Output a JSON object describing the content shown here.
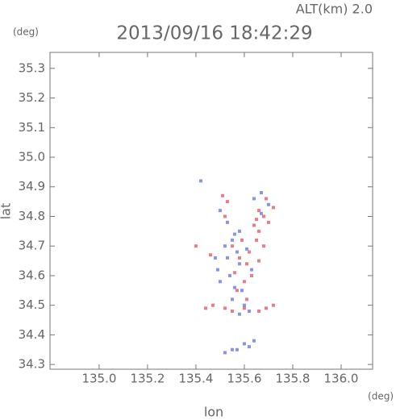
{
  "chart_data": {
    "type": "scatter",
    "title": "2013/09/16 18:42:29",
    "subtitle": "ALT(km) 2.0",
    "y_unit": "(deg)",
    "x_unit": "(deg)",
    "xlabel": "lon",
    "ylabel": "lat",
    "xlim": [
      134.797,
      136.13
    ],
    "ylim": [
      34.284,
      35.354
    ],
    "xticks": [
      {
        "value": 135.0,
        "label": "135.0"
      },
      135.2,
      135.4,
      135.6,
      135.8,
      {
        "value": 136.0,
        "label": "136.0"
      }
    ],
    "yticks": [
      34.3,
      34.4,
      34.5,
      34.6,
      34.7,
      34.8,
      34.9,
      {
        "value": 35.0,
        "label": "35.0"
      },
      35.1,
      35.2,
      35.3
    ],
    "series": [
      {
        "color": "#e05060",
        "x": [
          135.51,
          135.53,
          135.52,
          135.66,
          135.68,
          135.7,
          135.65,
          135.72,
          135.69,
          135.64,
          135.66,
          135.55,
          135.58,
          135.62,
          135.65,
          135.68,
          135.61,
          135.66,
          135.6,
          135.63,
          135.57,
          135.44,
          135.47,
          135.52,
          135.55,
          135.6,
          135.66,
          135.69,
          135.72,
          135.4,
          135.46,
          135.61,
          135.56,
          135.59
        ],
        "y": [
          34.87,
          34.85,
          34.8,
          34.82,
          34.8,
          34.78,
          34.79,
          34.83,
          34.86,
          34.77,
          34.75,
          34.7,
          34.66,
          34.68,
          34.72,
          34.7,
          34.64,
          34.65,
          34.58,
          34.6,
          34.55,
          34.49,
          34.5,
          34.49,
          34.48,
          34.49,
          34.48,
          34.49,
          34.5,
          34.7,
          34.67,
          34.52,
          34.61,
          34.72
        ]
      },
      {
        "color": "#6070e0",
        "x": [
          135.42,
          135.5,
          135.53,
          135.48,
          135.49,
          135.52,
          135.55,
          135.57,
          135.5,
          135.54,
          135.58,
          135.53,
          135.56,
          135.59,
          135.55,
          135.6,
          135.62,
          135.58,
          135.61,
          135.56,
          135.64,
          135.67,
          135.52,
          135.57,
          135.62,
          135.55,
          135.6,
          135.64,
          135.67,
          135.7,
          135.63,
          135.58
        ],
        "y": [
          34.92,
          34.82,
          34.78,
          34.66,
          34.62,
          34.7,
          34.72,
          34.68,
          34.58,
          34.6,
          34.64,
          34.66,
          34.56,
          34.55,
          34.52,
          34.5,
          34.48,
          34.47,
          34.69,
          34.74,
          34.86,
          34.88,
          34.34,
          34.35,
          34.36,
          34.35,
          34.37,
          34.38,
          34.81,
          34.84,
          34.62,
          34.75
        ]
      }
    ]
  }
}
